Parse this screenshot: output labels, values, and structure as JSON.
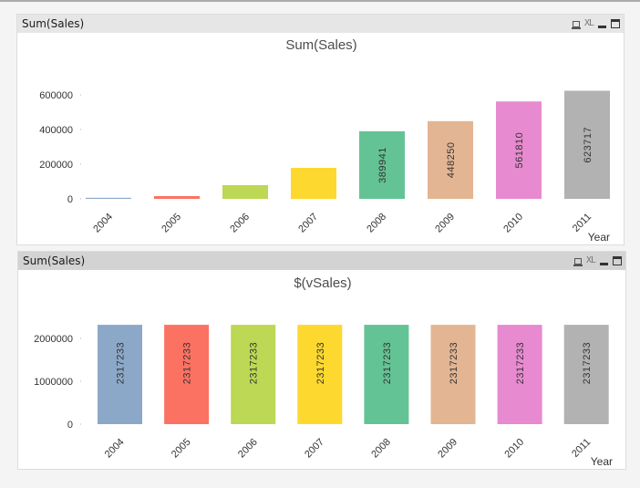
{
  "panels": [
    {
      "caption": "Sum(Sales)",
      "icons": {
        "print": "print-icon",
        "xl": "XL",
        "minimize": "minimize-icon",
        "maximize": "maximize-icon"
      }
    },
    {
      "caption": "Sum(Sales)",
      "icons": {
        "print": "print-icon",
        "xl": "XL",
        "minimize": "minimize-icon",
        "maximize": "maximize-icon"
      }
    }
  ],
  "chart_data": [
    {
      "type": "bar",
      "title": "Sum(Sales)",
      "xlabel": "Year",
      "ylabel": "",
      "categories": [
        "2004",
        "2005",
        "2006",
        "2007",
        "2008",
        "2009",
        "2010",
        "2011"
      ],
      "values": [
        6000,
        16000,
        79000,
        179000,
        389941,
        448250,
        561810,
        623717
      ],
      "data_labels": [
        "",
        "",
        "",
        "",
        "389941",
        "448250",
        "561810",
        "623717"
      ],
      "colors": [
        "#8ca8c8",
        "#fc7262",
        "#bcd854",
        "#fdd82f",
        "#64c394",
        "#e3b593",
        "#e78ad0",
        "#b2b2b2"
      ],
      "yticks": [
        0,
        200000,
        400000,
        600000
      ],
      "ytick_labels": [
        "0",
        "200000",
        "400000",
        "600000"
      ],
      "ylim": [
        0,
        650000
      ],
      "grid": false
    },
    {
      "type": "bar",
      "title": "$(vSales)",
      "xlabel": "Year",
      "ylabel": "",
      "categories": [
        "2004",
        "2005",
        "2006",
        "2007",
        "2008",
        "2009",
        "2010",
        "2011"
      ],
      "values": [
        2317233,
        2317233,
        2317233,
        2317233,
        2317233,
        2317233,
        2317233,
        2317233
      ],
      "data_labels": [
        "2317233",
        "2317233",
        "2317233",
        "2317233",
        "2317233",
        "2317233",
        "2317233",
        "2317233"
      ],
      "colors": [
        "#8ca8c8",
        "#fc7262",
        "#bcd854",
        "#fdd82f",
        "#64c394",
        "#e3b593",
        "#e78ad0",
        "#b2b2b2"
      ],
      "yticks": [
        0,
        1000000,
        2000000
      ],
      "ytick_labels": [
        "0",
        "1000000",
        "2000000"
      ],
      "ylim": [
        0,
        2400000
      ],
      "grid": false
    }
  ]
}
